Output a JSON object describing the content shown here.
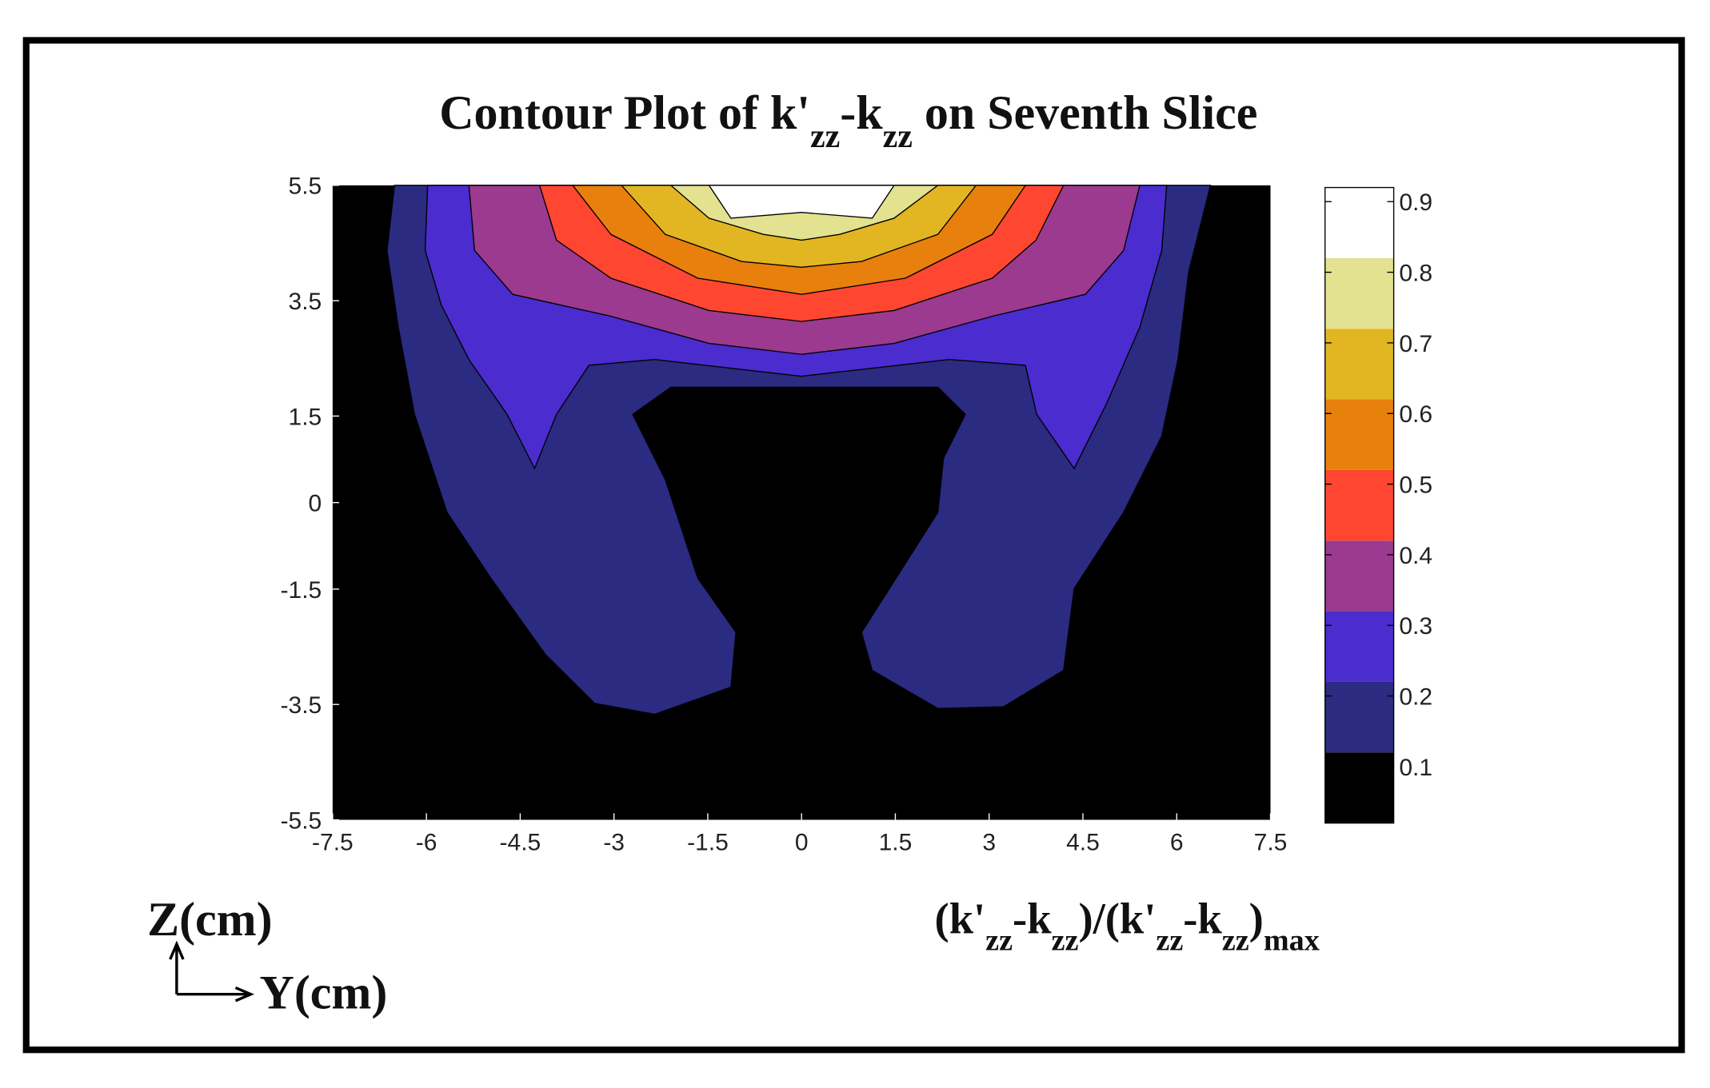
{
  "chart_data": {
    "type": "contour",
    "title_parts": [
      {
        "text": "Contour Plot of  k'"
      },
      {
        "text": "zz",
        "sub": true
      },
      {
        "text": "-k"
      },
      {
        "text": "zz",
        "sub": true
      },
      {
        "text": " on Seventh Slice"
      }
    ],
    "ylabel": "Z(cm)",
    "xlabel": "Y(cm)",
    "colorbar_label_parts": [
      {
        "text": "(k'"
      },
      {
        "text": "zz",
        "sub": true
      },
      {
        "text": "-k"
      },
      {
        "text": "zz",
        "sub": true
      },
      {
        "text": ")/(k'"
      },
      {
        "text": "zz",
        "sub": true
      },
      {
        "text": "-k"
      },
      {
        "text": "zz",
        "sub": true
      },
      {
        "text": ")"
      },
      {
        "text": "max",
        "sub": true
      }
    ],
    "xlim": [
      -7.5,
      7.5
    ],
    "xticks": [
      -7.5,
      -6,
      -4.5,
      -3,
      -1.5,
      0,
      1.5,
      3,
      4.5,
      6,
      7.5
    ],
    "ylim": [
      -5.5,
      5.5
    ],
    "yticks": [
      5.5,
      3.5,
      1.5,
      0,
      -1.5,
      -3.5,
      -5.5
    ],
    "clim": [
      0.02,
      0.92
    ],
    "cticks": [
      0.1,
      0.2,
      0.3,
      0.4,
      0.5,
      0.6,
      0.7,
      0.8,
      0.9
    ],
    "levels": [
      0.02,
      0.12,
      0.22,
      0.32,
      0.42,
      0.52,
      0.62,
      0.72,
      0.82,
      0.92
    ],
    "colors": [
      "#000000",
      "#2b2b82",
      "#4a2ccf",
      "#9b3a8e",
      "#ff4630",
      "#e8800e",
      "#e2b622",
      "#e2e290",
      "#ffffff"
    ],
    "contours": [
      {
        "level": 0.12,
        "x": [
          -6.51,
          -6.63,
          -6.45,
          -6.19,
          -5.67,
          -4.97,
          -4.1,
          -3.31,
          -2.35,
          -1.13,
          -1.05,
          -1.66,
          -2.18,
          -2.7,
          -2.09,
          2.18,
          2.62,
          2.27,
          2.18,
          0.96,
          1.13,
          2.18,
          3.23,
          4.19,
          4.36,
          5.15,
          5.76,
          6.02,
          6.19,
          6.54
        ],
        "y": [
          5.5,
          4.37,
          3.04,
          1.53,
          -0.17,
          -1.31,
          -2.63,
          -3.48,
          -3.67,
          -3.2,
          -2.25,
          -1.31,
          0.4,
          1.53,
          2.0,
          2.0,
          1.53,
          0.77,
          -0.17,
          -2.25,
          -2.91,
          -3.57,
          -3.54,
          -2.91,
          -1.49,
          -0.17,
          1.15,
          2.48,
          3.99,
          5.5
        ]
      },
      {
        "level": 0.22,
        "x": [
          -5.98,
          -6.02,
          -5.76,
          -5.32,
          -4.71,
          -4.27,
          -3.92,
          -3.4,
          -2.35,
          0,
          2.36,
          3.58,
          3.76,
          4.36,
          4.88,
          5.41,
          5.76,
          5.84
        ],
        "y": [
          5.5,
          4.37,
          3.42,
          2.48,
          1.53,
          0.59,
          1.53,
          2.38,
          2.48,
          2.19,
          2.48,
          2.38,
          1.53,
          0.59,
          1.72,
          3.04,
          4.37,
          5.5
        ]
      },
      {
        "level": 0.32,
        "x": [
          -5.32,
          -5.23,
          -4.62,
          -3.05,
          -1.48,
          0,
          1.48,
          3.05,
          4.54,
          5.15,
          5.41
        ],
        "y": [
          5.5,
          4.37,
          3.61,
          3.23,
          2.76,
          2.57,
          2.76,
          3.23,
          3.61,
          4.37,
          5.5
        ]
      },
      {
        "level": 0.42,
        "x": [
          -4.19,
          -3.92,
          -3.05,
          -1.48,
          0,
          1.48,
          3.05,
          3.75,
          4.19
        ],
        "y": [
          5.5,
          4.55,
          3.89,
          3.33,
          3.14,
          3.33,
          3.89,
          4.55,
          5.5
        ]
      },
      {
        "level": 0.52,
        "x": [
          -3.66,
          -3.05,
          -1.66,
          0,
          1.66,
          3.05,
          3.58
        ],
        "y": [
          5.5,
          4.65,
          3.89,
          3.61,
          3.89,
          4.65,
          5.5
        ]
      },
      {
        "level": 0.62,
        "x": [
          -2.88,
          -2.18,
          -0.96,
          0,
          0.96,
          2.18,
          2.79
        ],
        "y": [
          5.5,
          4.65,
          4.18,
          4.08,
          4.18,
          4.65,
          5.5
        ]
      },
      {
        "level": 0.72,
        "x": [
          -2.09,
          -1.48,
          -0.61,
          0,
          0.61,
          1.48,
          2.18
        ],
        "y": [
          5.5,
          4.93,
          4.65,
          4.55,
          4.65,
          4.93,
          5.5
        ]
      },
      {
        "level": 0.82,
        "x": [
          -1.48,
          -1.13,
          0,
          1.13,
          1.48
        ],
        "y": [
          5.5,
          4.93,
          5.03,
          4.93,
          5.5
        ]
      }
    ]
  }
}
